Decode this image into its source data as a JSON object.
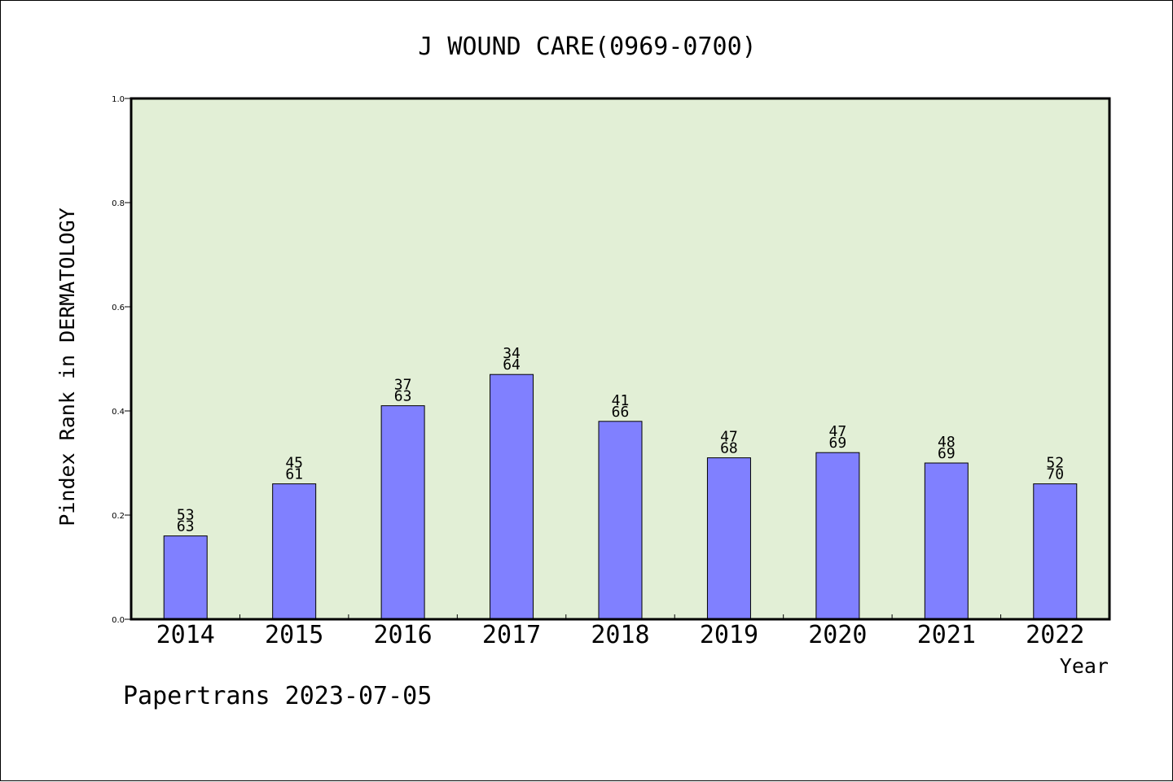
{
  "chart_data": {
    "type": "bar",
    "title": "J WOUND CARE(0969-0700)",
    "xlabel": "Year",
    "ylabel": "Pindex Rank in DERMATOLOGY",
    "ylim": [
      0,
      1.0
    ],
    "yticks": [
      "0.0",
      "0.2",
      "0.4",
      "0.6",
      "0.8",
      "1.0"
    ],
    "grid": false,
    "categories": [
      "2014",
      "2015",
      "2016",
      "2017",
      "2018",
      "2019",
      "2020",
      "2021",
      "2022"
    ],
    "values": [
      0.16,
      0.26,
      0.41,
      0.47,
      0.38,
      0.31,
      0.32,
      0.3,
      0.26
    ],
    "label_top": [
      "53",
      "45",
      "37",
      "34",
      "41",
      "47",
      "47",
      "48",
      "52"
    ],
    "label_bottom": [
      "63",
      "61",
      "63",
      "64",
      "66",
      "68",
      "69",
      "69",
      "70"
    ],
    "bar_color": "#8080ff",
    "plot_background": "#e2efd6"
  },
  "footer": "Papertrans 2023-07-05"
}
